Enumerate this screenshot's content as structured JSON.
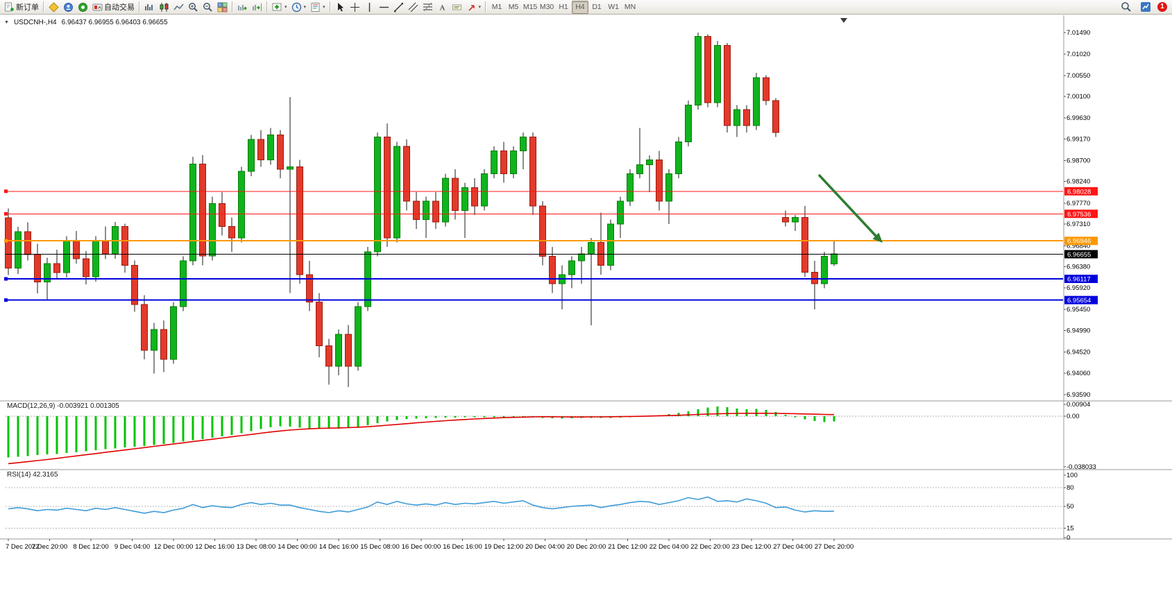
{
  "toolbar": {
    "new_order_label": "新订单",
    "autotrading_label": "自动交易",
    "timeframes": [
      "M1",
      "M5",
      "M15",
      "M30",
      "H1",
      "H4",
      "D1",
      "W1",
      "MN"
    ],
    "active_timeframe": "H4",
    "badge_count": "1"
  },
  "chart_data": {
    "type": "candlestick",
    "symbol": "USDCNH-,H4",
    "title_ohlc": "6.96437 6.96955 6.96403 6.96655",
    "current_ohlc": {
      "open": 6.96437,
      "high": 6.96955,
      "low": 6.96403,
      "close": 6.96655
    },
    "price_axis": [
      "7.01490",
      "7.01020",
      "7.00550",
      "7.00100",
      "6.99630",
      "6.99170",
      "6.98700",
      "6.98240",
      "6.97770",
      "6.97310",
      "6.96840",
      "6.96380",
      "6.95920",
      "6.95450",
      "6.94990",
      "6.94520",
      "6.94060",
      "6.93590"
    ],
    "time_labels": [
      "7 Dec 2022",
      "7 Dec 20:00",
      "8 Dec 12:00",
      "9 Dec 04:00",
      "12 Dec 00:00",
      "12 Dec 16:00",
      "13 Dec 08:00",
      "14 Dec 00:00",
      "14 Dec 16:00",
      "15 Dec 08:00",
      "16 Dec 00:00",
      "16 Dec 16:00",
      "19 Dec 12:00",
      "20 Dec 04:00",
      "20 Dec 20:00",
      "21 Dec 12:00",
      "22 Dec 04:00",
      "22 Dec 20:00",
      "23 Dec 12:00",
      "27 Dec 04:00",
      "27 Dec 20:00"
    ],
    "levels": [
      {
        "name": "resistance-line-upper",
        "price": 6.98028,
        "label": "6.98028",
        "color": "#ff1414",
        "width": 1
      },
      {
        "name": "resistance-line-lower",
        "price": 6.97536,
        "label": "6.97536",
        "color": "#ff1414",
        "width": 1
      },
      {
        "name": "pivot-line-orange",
        "price": 6.96946,
        "label": "6.96946",
        "color": "#ff9800",
        "width": 2
      },
      {
        "name": "current-price-line",
        "price": 6.96655,
        "label": "6.96655",
        "color": "#000000",
        "width": 1,
        "current": true
      },
      {
        "name": "support-line-upper",
        "price": 6.96117,
        "label": "6.96117",
        "color": "#0000dd",
        "width": 2
      },
      {
        "name": "support-line-lower",
        "price": 6.95654,
        "label": "6.95654",
        "color": "#0000dd",
        "width": 2
      }
    ],
    "candles": [
      [
        6.9745,
        6.9765,
        6.962,
        6.9635
      ],
      [
        6.9635,
        6.9725,
        6.9622,
        6.9715
      ],
      [
        6.9715,
        6.9735,
        6.9652,
        6.9665
      ],
      [
        6.9665,
        6.9688,
        6.958,
        6.9605
      ],
      [
        6.9605,
        6.9658,
        6.9565,
        6.9645
      ],
      [
        6.9645,
        6.9675,
        6.9612,
        6.9625
      ],
      [
        6.9625,
        6.9705,
        6.9615,
        6.9695
      ],
      [
        6.9695,
        6.9716,
        6.9645,
        6.9656
      ],
      [
        6.9656,
        6.9672,
        6.96,
        6.9616
      ],
      [
        6.9616,
        6.9705,
        6.9606,
        6.9696
      ],
      [
        6.9696,
        6.9726,
        6.9655,
        6.9666
      ],
      [
        6.9666,
        6.9736,
        6.9656,
        6.9726
      ],
      [
        6.9726,
        6.9732,
        6.9625,
        6.9641
      ],
      [
        6.9641,
        6.9652,
        6.954,
        6.9556
      ],
      [
        6.9556,
        6.9576,
        6.9436,
        6.9456
      ],
      [
        6.9456,
        6.9516,
        6.9405,
        6.9501
      ],
      [
        6.9501,
        6.9521,
        6.9408,
        6.9436
      ],
      [
        6.9436,
        6.9561,
        6.9426,
        6.9551
      ],
      [
        6.9551,
        6.9661,
        6.9541,
        6.9651
      ],
      [
        6.9651,
        6.9878,
        6.9641,
        6.9862
      ],
      [
        6.9862,
        6.9882,
        6.9641,
        6.9662
      ],
      [
        6.9662,
        6.9791,
        6.9652,
        6.9776
      ],
      [
        6.9776,
        6.9801,
        6.9706,
        6.9726
      ],
      [
        6.9726,
        6.9746,
        6.9671,
        6.9701
      ],
      [
        6.9701,
        6.9856,
        6.9691,
        6.9846
      ],
      [
        6.9846,
        6.9926,
        6.9836,
        6.9916
      ],
      [
        6.9916,
        6.9936,
        6.9856,
        6.9871
      ],
      [
        6.9871,
        6.9941,
        6.9861,
        6.9926
      ],
      [
        6.9926,
        6.9936,
        6.9831,
        6.9851
      ],
      [
        6.9851,
        7.0008,
        6.9581,
        6.9856
      ],
      [
        6.9856,
        6.9871,
        6.9601,
        6.9621
      ],
      [
        6.9621,
        6.9651,
        6.9541,
        6.9561
      ],
      [
        6.9561,
        6.9581,
        6.9441,
        6.9466
      ],
      [
        6.9466,
        6.9481,
        6.9381,
        6.9421
      ],
      [
        6.9421,
        6.9501,
        6.9401,
        6.9491
      ],
      [
        6.9491,
        6.9511,
        6.9376,
        6.9421
      ],
      [
        6.9421,
        6.9561,
        6.9411,
        6.9551
      ],
      [
        6.9551,
        6.9681,
        6.9541,
        6.9671
      ],
      [
        6.9671,
        6.9931,
        6.9661,
        6.9921
      ],
      [
        6.9921,
        6.9951,
        6.9681,
        6.9701
      ],
      [
        6.9701,
        6.9911,
        6.9691,
        6.9901
      ],
      [
        6.9901,
        6.9916,
        6.9761,
        6.9781
      ],
      [
        6.9781,
        6.9801,
        6.9721,
        6.9741
      ],
      [
        6.9741,
        6.9791,
        6.9701,
        6.9781
      ],
      [
        6.9781,
        6.9801,
        6.9721,
        6.9736
      ],
      [
        6.9736,
        6.9841,
        6.9726,
        6.9831
      ],
      [
        6.9831,
        6.9851,
        6.9741,
        6.9761
      ],
      [
        6.9761,
        6.9821,
        6.9701,
        6.9811
      ],
      [
        6.9811,
        6.9831,
        6.9751,
        6.9771
      ],
      [
        6.9771,
        6.9851,
        6.9761,
        6.9841
      ],
      [
        6.9841,
        6.9901,
        6.9831,
        6.9891
      ],
      [
        6.9891,
        6.9911,
        6.9821,
        6.9841
      ],
      [
        6.9841,
        6.9901,
        6.9831,
        6.9891
      ],
      [
        6.9891,
        6.9931,
        6.9851,
        6.9921
      ],
      [
        6.9921,
        6.9931,
        6.9751,
        6.9771
      ],
      [
        6.9771,
        6.9781,
        6.9641,
        6.9661
      ],
      [
        6.9661,
        6.9681,
        6.9581,
        6.9601
      ],
      [
        6.9601,
        6.9641,
        6.9545,
        6.9621
      ],
      [
        6.9621,
        6.9661,
        6.9591,
        6.9651
      ],
      [
        6.9651,
        6.9681,
        6.9601,
        6.9666
      ],
      [
        6.9666,
        6.9701,
        6.951,
        6.9691
      ],
      [
        6.9691,
        6.9756,
        6.9621,
        6.9641
      ],
      [
        6.9641,
        6.9741,
        6.9631,
        6.9731
      ],
      [
        6.9731,
        6.9791,
        6.9701,
        6.9781
      ],
      [
        6.9781,
        6.9851,
        6.9771,
        6.9841
      ],
      [
        6.9841,
        6.9941,
        6.9831,
        6.9861
      ],
      [
        6.9861,
        6.9881,
        6.9801,
        6.9871
      ],
      [
        6.9871,
        6.9891,
        6.9761,
        6.9781
      ],
      [
        6.9781,
        6.9851,
        6.9731,
        6.9841
      ],
      [
        6.9841,
        6.9921,
        6.9831,
        6.9911
      ],
      [
        6.9911,
        7.0001,
        6.9901,
        6.9991
      ],
      [
        6.9991,
        7.0149,
        6.9981,
        7.0141
      ],
      [
        7.0141,
        7.0145,
        6.9986,
        6.9996
      ],
      [
        6.9996,
        7.0131,
        6.9986,
        7.0121
      ],
      [
        7.0121,
        7.0126,
        6.9931,
        6.9946
      ],
      [
        6.9946,
        6.9991,
        6.9921,
        6.9981
      ],
      [
        6.9981,
        6.9991,
        6.9931,
        6.9946
      ],
      [
        6.9946,
        7.0061,
        6.9936,
        7.0051
      ],
      [
        7.0051,
        7.0056,
        6.9991,
        7.0001
      ],
      [
        7.0001,
        7.0006,
        6.9921,
        6.9931
      ],
      [
        6.9746,
        6.9761,
        6.9726,
        6.9736
      ],
      [
        6.9736,
        6.9751,
        6.9716,
        6.9746
      ],
      [
        6.9746,
        6.9771,
        6.9616,
        6.9626
      ],
      [
        6.9626,
        6.9651,
        6.9545,
        6.9601
      ],
      [
        6.9601,
        6.9671,
        6.9591,
        6.9661
      ],
      [
        6.9644,
        6.9696,
        6.964,
        6.9666
      ]
    ],
    "colors": {
      "bull": "#0fb41e",
      "bear": "#e23a2b",
      "wick": "#1a1a1a",
      "bull_border": "#067c06",
      "bear_border": "#9c1b10",
      "macd_hist": "#00c400",
      "macd_signal": "#e00000",
      "rsi_line": "#3e9bd8"
    },
    "annotations": {
      "arrow": {
        "color": "#2e7d32"
      }
    },
    "indicators": {
      "macd": {
        "label": "MACD(12,26,9)",
        "value_main": "-0.003921",
        "value_signal": "0.001305",
        "scale_max": 0.0095,
        "scale_min": -0.0385,
        "axis": [
          {
            "v": 0.00904,
            "t": "0.00904"
          },
          {
            "v": 0,
            "t": "0.00"
          },
          {
            "v": -0.038033,
            "t": "-0.038033"
          }
        ],
        "histogram": [
          -0.031,
          -0.0304,
          -0.0298,
          -0.0292,
          -0.0287,
          -0.0282,
          -0.0276,
          -0.0269,
          -0.0262,
          -0.0255,
          -0.0248,
          -0.0241,
          -0.0234,
          -0.0228,
          -0.0222,
          -0.0215,
          -0.0207,
          -0.0199,
          -0.019,
          -0.018,
          -0.017,
          -0.016,
          -0.015,
          -0.014,
          -0.0128,
          -0.0112,
          -0.0096,
          -0.0082,
          -0.0074,
          -0.0078,
          -0.0084,
          -0.009,
          -0.0093,
          -0.0094,
          -0.0092,
          -0.0088,
          -0.008,
          -0.0068,
          -0.0052,
          -0.0038,
          -0.0028,
          -0.0021,
          -0.0017,
          -0.0014,
          -0.0012,
          -0.001,
          -0.0009,
          -0.0008,
          -0.0008,
          -0.0007,
          -0.0006,
          -0.0007,
          -0.0007,
          -0.0006,
          -0.0008,
          -0.0011,
          -0.0014,
          -0.0016,
          -0.0015,
          -0.0013,
          -0.0012,
          -0.0013,
          -0.0012,
          -0.0009,
          -0.0006,
          -0.0003,
          0.0004,
          0.001,
          0.0017,
          0.0026,
          0.0038,
          0.0052,
          0.0066,
          0.0075,
          0.0068,
          0.0058,
          0.0052,
          0.0055,
          0.0048,
          0.0032,
          0.0012,
          -0.0006,
          -0.0022,
          -0.0036,
          -0.0042,
          -0.003921
        ],
        "signal": [
          -0.0356,
          -0.0349,
          -0.0341,
          -0.0333,
          -0.0325,
          -0.0316,
          -0.0307,
          -0.0298,
          -0.0289,
          -0.028,
          -0.0271,
          -0.0262,
          -0.0253,
          -0.0244,
          -0.0235,
          -0.0226,
          -0.0217,
          -0.0208,
          -0.0199,
          -0.019,
          -0.0181,
          -0.0172,
          -0.0163,
          -0.0154,
          -0.0145,
          -0.0136,
          -0.0127,
          -0.0118,
          -0.011,
          -0.0103,
          -0.0098,
          -0.0094,
          -0.0091,
          -0.0089,
          -0.0087,
          -0.0085,
          -0.0082,
          -0.0078,
          -0.0073,
          -0.0067,
          -0.0061,
          -0.0055,
          -0.0049,
          -0.0043,
          -0.0038,
          -0.0033,
          -0.0028,
          -0.0024,
          -0.002,
          -0.0016,
          -0.0013,
          -0.001,
          -0.0008,
          -0.0006,
          -0.0004,
          -0.0003,
          -0.0003,
          -0.0004,
          -0.0005,
          -0.0005,
          -0.0004,
          -0.0004,
          -0.0003,
          -0.0002,
          -0.0001,
          0.0,
          0.0002,
          0.0004,
          0.0006,
          0.0008,
          0.0011,
          0.0014,
          0.0017,
          0.0019,
          0.0021,
          0.0022,
          0.0023,
          0.0023,
          0.0023,
          0.0022,
          0.0021,
          0.002,
          0.0018,
          0.0016,
          0.0014,
          0.001305
        ]
      },
      "rsi": {
        "label": "RSI(14)",
        "value": "42.3165",
        "levels": [
          80,
          50,
          15
        ],
        "axis": [
          {
            "v": 100,
            "t": "100"
          },
          {
            "v": 80,
            "t": "80"
          },
          {
            "v": 50,
            "t": "50"
          },
          {
            "v": 15,
            "t": "15"
          },
          {
            "v": 0,
            "t": "0"
          }
        ],
        "values": [
          46,
          48,
          46,
          43,
          45,
          44,
          47,
          45,
          43,
          47,
          45,
          48,
          45,
          42,
          39,
          42,
          40,
          44,
          47,
          53,
          48,
          51,
          49,
          48,
          53,
          56,
          53,
          55,
          52,
          52,
          48,
          45,
          42,
          40,
          43,
          41,
          45,
          49,
          57,
          53,
          58,
          54,
          52,
          54,
          52,
          56,
          53,
          55,
          54,
          56,
          58,
          55,
          57,
          59,
          52,
          48,
          46,
          48,
          50,
          51,
          52,
          48,
          51,
          53,
          56,
          58,
          57,
          53,
          56,
          59,
          64,
          61,
          65,
          58,
          59,
          57,
          62,
          59,
          55,
          48,
          49,
          44,
          41,
          43,
          42,
          42.3
        ]
      }
    }
  }
}
